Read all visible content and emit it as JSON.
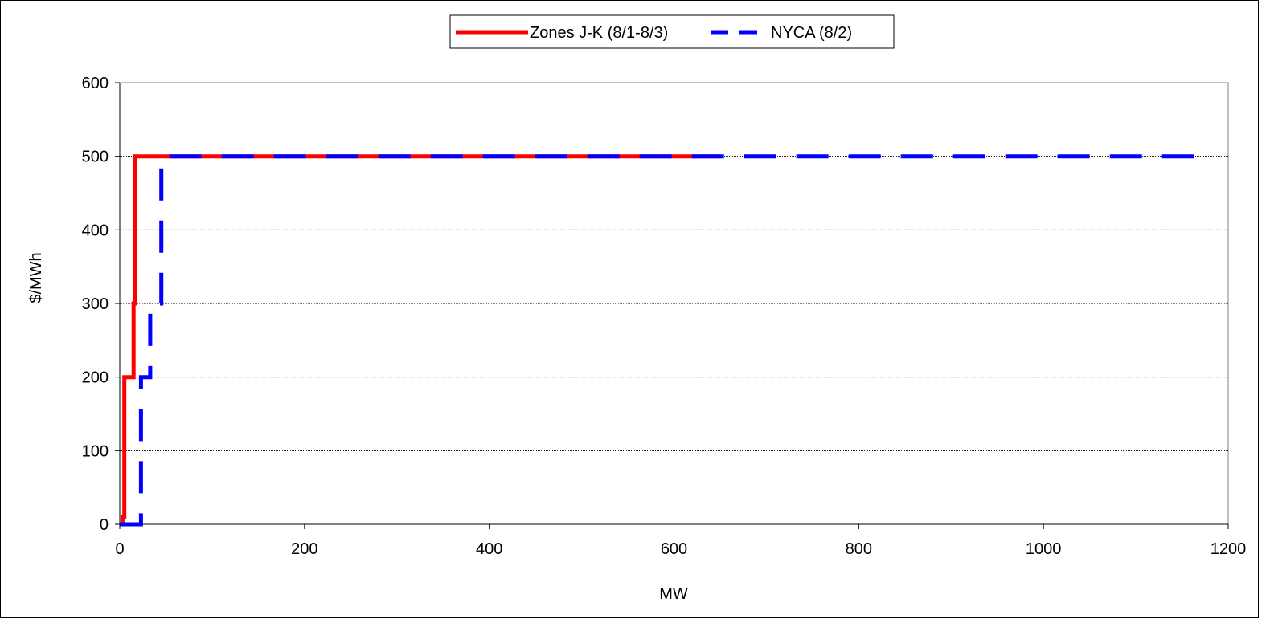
{
  "chart_data": {
    "type": "line",
    "xlabel": "MW",
    "ylabel": "$/MWh",
    "xlim": [
      0,
      1200
    ],
    "ylim": [
      0,
      600
    ],
    "xticks": [
      "0",
      "200",
      "400",
      "600",
      "800",
      "1000",
      "1200"
    ],
    "yticks": [
      "0",
      "100",
      "200",
      "300",
      "400",
      "500",
      "600"
    ],
    "grid": "horizontal",
    "legend_position": "top",
    "series": [
      {
        "name": "Zones J-K (8/1-8/3)",
        "color": "#ff0000",
        "style": "solid",
        "x": [
          0,
          3,
          3,
          5,
          5,
          15,
          15,
          17,
          17,
          650
        ],
        "y": [
          0,
          0,
          10,
          10,
          200,
          200,
          300,
          300,
          500,
          500
        ]
      },
      {
        "name": "NYCA (8/2)",
        "color": "#0000ff",
        "style": "dashed",
        "x": [
          0,
          23,
          23,
          33,
          33,
          45,
          45,
          1170
        ],
        "y": [
          0,
          0,
          200,
          200,
          300,
          300,
          500,
          500
        ]
      }
    ]
  }
}
